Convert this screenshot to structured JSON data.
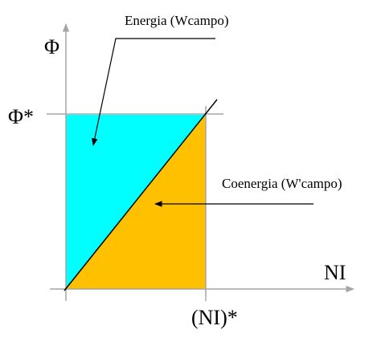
{
  "diagram": {
    "y_axis_label": "Φ",
    "x_axis_label": "NI",
    "flux_marker_label": "Φ*",
    "current_marker_label": "(NI)*",
    "energy_label": "Energia (Wcampo)",
    "coenergy_label": "Coenergia (W'campo)",
    "colors": {
      "energy_fill": "#00ffff",
      "coenergy_fill": "#ffc000",
      "axis": "#a6a6a6",
      "line": "#000000",
      "background": "#ffffff"
    }
  }
}
